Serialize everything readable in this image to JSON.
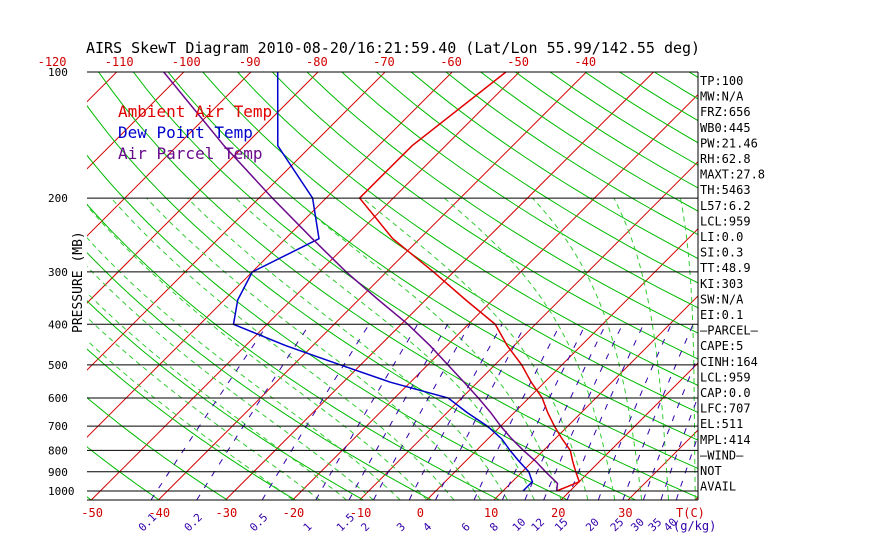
{
  "chart_data": {
    "type": "line",
    "title": "AIRS SkewT Diagram 2010-08-20/16:21:59.40 (Lat/Lon 55.99/142.55 deg)",
    "ylabel": "PRESSURE (MB)",
    "top_temp_ticks": [
      "-120",
      "-110",
      "-100",
      "-90",
      "-80",
      "-70",
      "-60",
      "-50",
      "-40"
    ],
    "bottom_temp_ticks": [
      "-50",
      "-40",
      "-30",
      "-20",
      "-10",
      "0",
      "10",
      "20",
      "30"
    ],
    "bottom_temp_unit": "T(C)",
    "mixing_ratio_ticks": [
      "0.1",
      "0.2",
      "0.5",
      "1",
      "1.5",
      "2",
      "3",
      "4",
      "6",
      "8",
      "10",
      "12",
      "15",
      "20",
      "25",
      "30",
      "35",
      "40"
    ],
    "mixing_ratio_unit": "(g/kg)",
    "pressure_ticks": [
      "100",
      "200",
      "300",
      "400",
      "500",
      "600",
      "700",
      "800",
      "900",
      "1000"
    ],
    "legend": [
      "Ambient Air Temp",
      "Dew Point Temp",
      "Air Parcel Temp"
    ],
    "colors": {
      "ambient": "#e00000",
      "dewpoint": "#0000cc",
      "parcel": "#6a0a8c",
      "isotherm": "#d40000",
      "dry_adiabat": "#00bb00",
      "moist_adiabat": "#33cc33",
      "mixing_ratio": "#3300aa"
    },
    "series": [
      {
        "name": "Ambient Air Temp",
        "points": [
          [
            1000,
            18
          ],
          [
            975,
            19
          ],
          [
            950,
            20
          ],
          [
            925,
            19
          ],
          [
            900,
            18
          ],
          [
            850,
            16
          ],
          [
            800,
            14
          ],
          [
            750,
            11
          ],
          [
            700,
            8
          ],
          [
            650,
            5
          ],
          [
            600,
            2
          ],
          [
            550,
            -2
          ],
          [
            500,
            -6
          ],
          [
            450,
            -11
          ],
          [
            400,
            -16
          ],
          [
            350,
            -24
          ],
          [
            300,
            -33
          ],
          [
            250,
            -44
          ],
          [
            200,
            -55
          ],
          [
            150,
            -55
          ],
          [
            100,
            -52
          ]
        ]
      },
      {
        "name": "Dew Point Temp",
        "points": [
          [
            1000,
            13
          ],
          [
            975,
            13
          ],
          [
            950,
            13
          ],
          [
            925,
            12
          ],
          [
            900,
            11
          ],
          [
            850,
            8
          ],
          [
            800,
            5
          ],
          [
            750,
            2
          ],
          [
            700,
            -2
          ],
          [
            650,
            -7
          ],
          [
            600,
            -12
          ],
          [
            550,
            -23
          ],
          [
            500,
            -33
          ],
          [
            450,
            -44
          ],
          [
            400,
            -55
          ],
          [
            350,
            -58
          ],
          [
            300,
            -60
          ],
          [
            250,
            -55
          ],
          [
            200,
            -62
          ],
          [
            150,
            -75
          ],
          [
            100,
            -86
          ]
        ]
      },
      {
        "name": "Air Parcel Temp",
        "points": [
          [
            1000,
            18
          ],
          [
            959,
            17
          ],
          [
            900,
            13.5
          ],
          [
            850,
            10.5
          ],
          [
            800,
            7
          ],
          [
            750,
            3.5
          ],
          [
            700,
            0
          ],
          [
            650,
            -3.5
          ],
          [
            600,
            -7.5
          ],
          [
            550,
            -12
          ],
          [
            500,
            -17
          ],
          [
            450,
            -22.5
          ],
          [
            400,
            -29
          ],
          [
            350,
            -37
          ],
          [
            300,
            -46
          ],
          [
            250,
            -56
          ],
          [
            200,
            -68
          ],
          [
            150,
            -83
          ],
          [
            100,
            -103
          ]
        ]
      }
    ],
    "indices": [
      "TP:100",
      "MW:N/A",
      "FRZ:656",
      "WB0:445",
      "PW:21.46",
      "RH:62.8",
      "MAXT:27.8",
      "TH:5463",
      "L57:6.2",
      "LCL:959",
      "LI:0.0",
      "SI:0.3",
      "TT:48.9",
      "KI:303",
      "SW:N/A",
      "EI:0.1",
      "–PARCEL–",
      "CAPE:5",
      "CINH:164",
      "LCL:959",
      "CAP:0.0",
      "LFC:707",
      "EL:511",
      "MPL:414",
      "–WIND–",
      "NOT",
      "AVAIL"
    ]
  }
}
